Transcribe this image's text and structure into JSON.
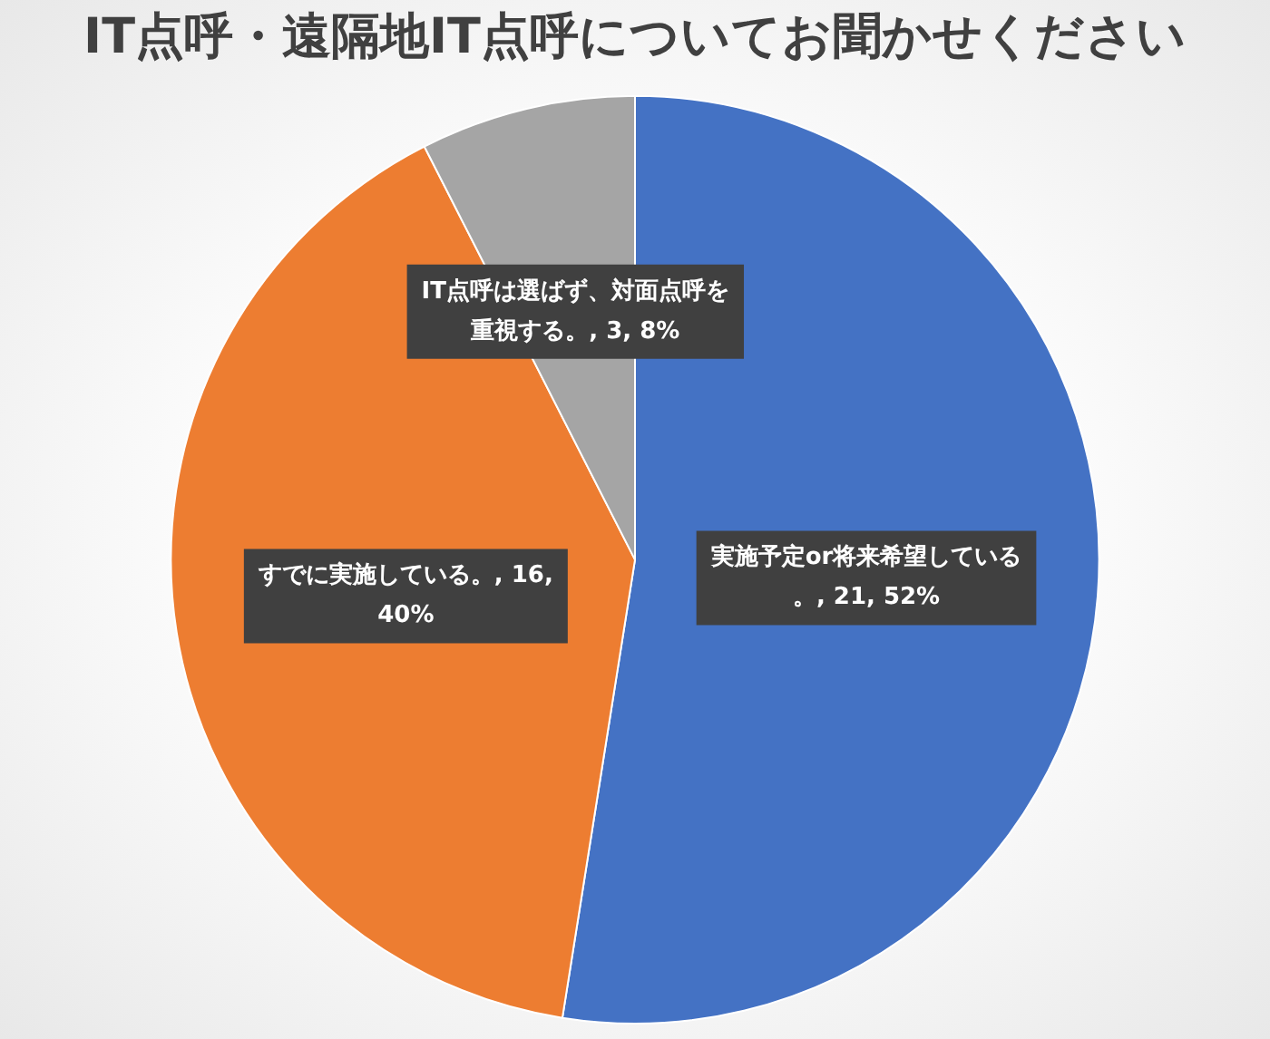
{
  "chart_data": {
    "type": "pie",
    "title": "IT点呼・遠隔地IT点呼についてお聞かせください",
    "categories": [
      "実施予定or将来希望している。",
      "すでに実施している。",
      "IT点呼は選ばず、対面点呼を重視する。"
    ],
    "values": [
      21,
      16,
      3
    ],
    "colors": [
      "#4472c4",
      "#ed7d31",
      "#a5a5a5"
    ],
    "value_labels": [
      ", 21, 52%",
      ", 16, 40%",
      ", 3, 8%"
    ],
    "legend": false
  }
}
